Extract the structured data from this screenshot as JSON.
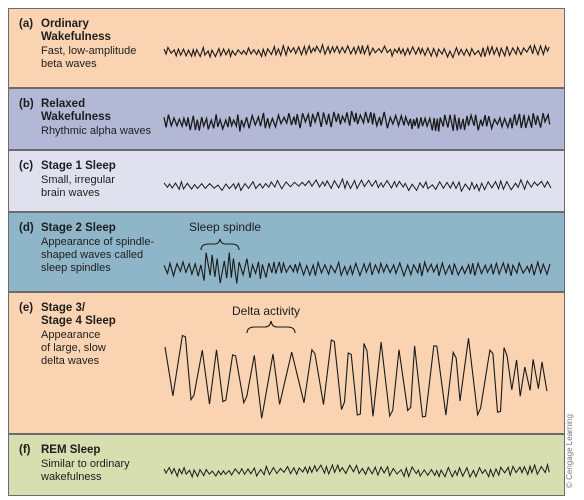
{
  "credit": "© Cengage Learning",
  "colors": {
    "border": "#6b6b6b",
    "wave": "#1a1a1a"
  },
  "panels": [
    {
      "letter": "(a)",
      "title_line1": "Ordinary",
      "title_line2": "Wakefulness",
      "desc_line1": "Fast, low-amplitude",
      "desc_line2": "beta waves",
      "desc_line3": "",
      "desc_line4": "",
      "bg": "#fad4b2",
      "wave": {
        "freq": "high",
        "amplitude": "low"
      }
    },
    {
      "letter": "(b)",
      "title_line1": "Relaxed",
      "title_line2": "Wakefulness",
      "desc_line1": "Rhythmic alpha waves",
      "desc_line2": "",
      "desc_line3": "",
      "desc_line4": "",
      "bg": "#b3b8d6",
      "wave": {
        "freq": "high",
        "amplitude": "medium"
      }
    },
    {
      "letter": "(c)",
      "title_line1": "Stage 1 Sleep",
      "title_line2": "",
      "desc_line1": "Small, irregular",
      "desc_line2": "brain waves",
      "desc_line3": "",
      "desc_line4": "",
      "bg": "#dfe2ee",
      "wave": {
        "freq": "high",
        "amplitude": "low"
      }
    },
    {
      "letter": "(d)",
      "title_line1": "Stage 2 Sleep",
      "title_line2": "",
      "desc_line1": "Appearance of spindle-",
      "desc_line2": "shaped waves called",
      "desc_line3": "sleep spindles",
      "desc_line4": "",
      "bg": "#8fb6c8",
      "annotation": "Sleep spindle",
      "wave": {
        "freq": "high",
        "amplitude": "medium",
        "feature": "spindle"
      }
    },
    {
      "letter": "(e)",
      "title_line1": "Stage 3/",
      "title_line2": "Stage 4 Sleep",
      "desc_line1": "Appearance",
      "desc_line2": "of large, slow",
      "desc_line3": "delta waves",
      "desc_line4": "",
      "bg": "#fad4b2",
      "annotation": "Delta activity",
      "wave": {
        "freq": "low",
        "amplitude": "high"
      }
    },
    {
      "letter": "(f)",
      "title_line1": "REM Sleep",
      "title_line2": "",
      "desc_line1": "Similar to ordinary",
      "desc_line2": "wakefulness",
      "desc_line3": "",
      "desc_line4": "",
      "bg": "#d7deaf",
      "wave": {
        "freq": "high",
        "amplitude": "low"
      }
    }
  ]
}
